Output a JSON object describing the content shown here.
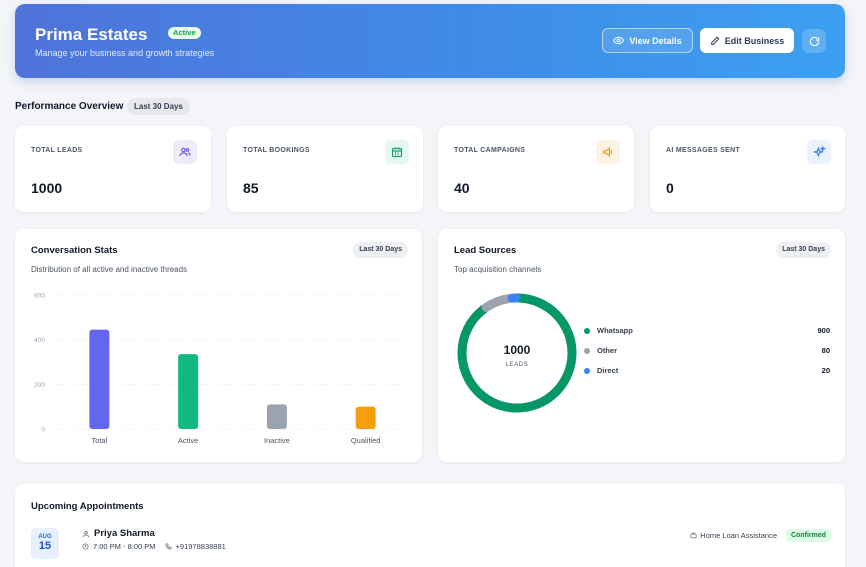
{
  "header": {
    "title": "Prima Estates",
    "status_badge": "Active",
    "subtitle": "Manage your business and growth strategies",
    "view_details_label": "View Details",
    "edit_business_label": "Edit Business"
  },
  "overview": {
    "title": "Performance Overview",
    "period": "Last 30 Days"
  },
  "stats": [
    {
      "label": "TOTAL LEADS",
      "value": "1000",
      "icon": "users-icon",
      "color": "#6d5fe6",
      "bg": "#eeecfc"
    },
    {
      "label": "TOTAL BOOKINGS",
      "value": "85",
      "icon": "calendar-icon",
      "color": "#10a36b",
      "bg": "#e6f7ef"
    },
    {
      "label": "TOTAL CAMPAIGNS",
      "value": "40",
      "icon": "megaphone-icon",
      "color": "#f59e0b",
      "bg": "#fdf3e2"
    },
    {
      "label": "AI MESSAGES SENT",
      "value": "0",
      "icon": "sparkles-icon",
      "color": "#3b82f6",
      "bg": "#eaf2fe"
    }
  ],
  "conversation": {
    "title": "Conversation Stats",
    "period": "Last 30 Days",
    "subtitle": "Distribution of all active and inactive threads"
  },
  "lead_sources": {
    "title": "Lead Sources",
    "period": "Last 30 Days",
    "subtitle": "Top acquisition channels",
    "center_value": "1000",
    "center_label": "LEADS",
    "items": [
      {
        "name": "Whatsapp",
        "value": "900",
        "color": "#059669"
      },
      {
        "name": "Other",
        "value": "80",
        "color": "#9ca3af"
      },
      {
        "name": "Direct",
        "value": "20",
        "color": "#3b82f6"
      }
    ]
  },
  "chart_data": [
    {
      "type": "bar",
      "categories": [
        "Total",
        "Active",
        "Inactive",
        "Qualified"
      ],
      "values": [
        445,
        335,
        110,
        100
      ],
      "colors": [
        "#6366f1",
        "#10b981",
        "#9ca3af",
        "#f59e0b"
      ],
      "ylim": [
        0,
        600
      ],
      "yticks": [
        "0",
        "200",
        "400",
        "600"
      ],
      "grid": true
    },
    {
      "type": "pie",
      "categories": [
        "Whatsapp",
        "Other",
        "Direct"
      ],
      "values": [
        900,
        80,
        20
      ],
      "colors": [
        "#059669",
        "#9ca3af",
        "#3b82f6"
      ],
      "donut": true
    }
  ],
  "appointments": {
    "title": "Upcoming Appointments",
    "items": [
      {
        "month": "AUG",
        "day": "15",
        "name": "Priya Sharma",
        "time": "7:00 PM - 8:00 PM",
        "phone": "+919788388‍81",
        "service": "Home Loan Assistance",
        "status": "Confirmed"
      }
    ]
  }
}
